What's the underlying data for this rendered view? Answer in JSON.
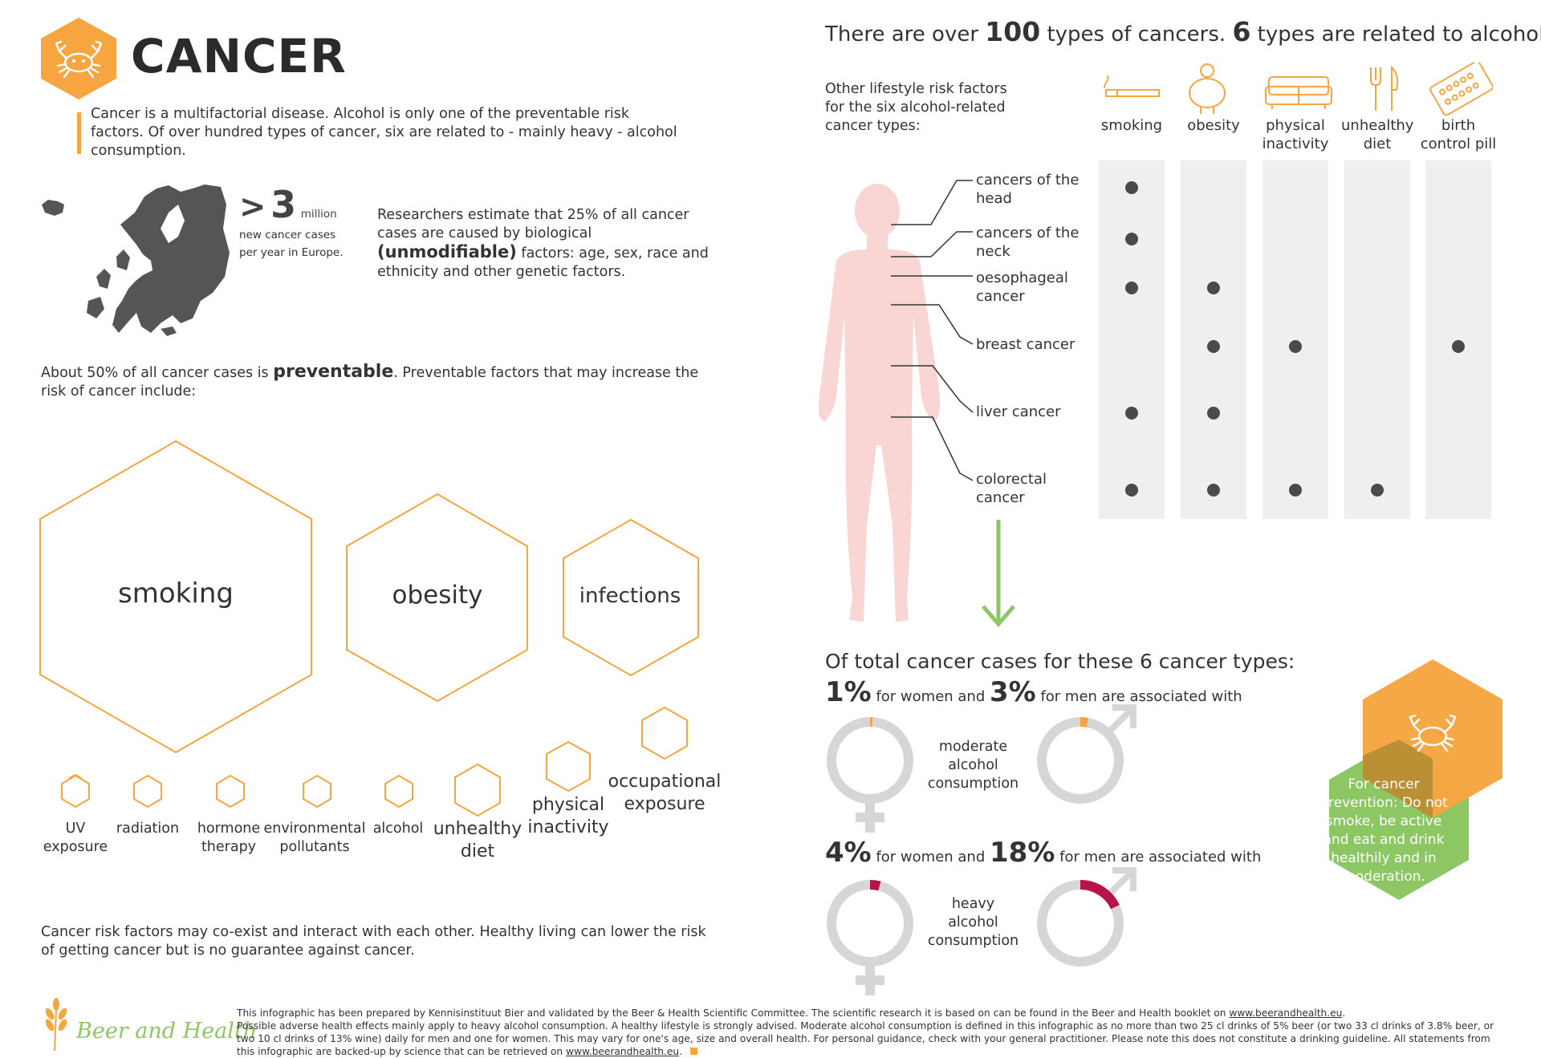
{
  "header": {
    "title": "CANCER",
    "intro": "Cancer is a multifactorial disease. Alcohol is only one of the preventable risk factors. Of over hundred types of cancer, six are related to - mainly heavy - alcohol consumption."
  },
  "europe": {
    "prefix": ">",
    "number": "3",
    "unit": "million",
    "line2": "new cancer cases",
    "line3": "per year in Europe."
  },
  "researchers": {
    "before": "Researchers estimate that 25% of all cancer cases are caused by biological ",
    "bold": "(unmodifiable)",
    "after": " factors: age, sex, race and ethnicity and other genetic factors."
  },
  "preventable": {
    "before": "About 50% of all cancer cases is ",
    "bold": "preventable",
    "after": ". Preventable factors that may increase the risk of cancer include:"
  },
  "big_hexes": [
    "smoking",
    "obesity",
    "infections"
  ],
  "small_factors": [
    "UV exposure",
    "radiation",
    "hormone therapy",
    "environmental pollutants",
    "alcohol",
    "unhealthy diet",
    "physical inactivity",
    "occupational exposure"
  ],
  "coexist": "Cancer risk factors may co-exist and interact with each other. Healthy living can lower the risk of getting cancer but is no guarantee against cancer.",
  "types_headline": {
    "a": "There are over ",
    "n1": "100",
    "b": " types of cancers. ",
    "n2": "6",
    "c": " types are related to alcohol."
  },
  "lifestyle_intro": "Other lifestyle risk factors for the six alcohol-related cancer types:",
  "risk_factors": [
    {
      "label": "smoking",
      "icon": "cigarette-icon"
    },
    {
      "label": "obesity",
      "icon": "obese-person-icon"
    },
    {
      "label": "physical inactivity",
      "icon": "sofa-icon"
    },
    {
      "label": "unhealthy diet",
      "icon": "fork-knife-icon"
    },
    {
      "label": "birth control pill",
      "icon": "pill-pack-icon"
    }
  ],
  "cancer_types": [
    {
      "label": "cancers of the head",
      "factors": [
        true,
        false,
        false,
        false,
        false
      ]
    },
    {
      "label": "cancers of the neck",
      "factors": [
        true,
        false,
        false,
        false,
        false
      ]
    },
    {
      "label": "oesophageal cancer",
      "factors": [
        true,
        true,
        false,
        false,
        false
      ]
    },
    {
      "label": "breast cancer",
      "factors": [
        false,
        true,
        true,
        false,
        true
      ]
    },
    {
      "label": "liver cancer",
      "factors": [
        true,
        true,
        false,
        false,
        false
      ]
    },
    {
      "label": "colorectal cancer",
      "factors": [
        true,
        true,
        true,
        true,
        false
      ]
    }
  ],
  "totals_headline": "Of total cancer cases for these 6 cancer types:",
  "moderate": {
    "women": "1%",
    "men": "3%",
    "for_women": " for women and ",
    "for_men": " for men are associated with",
    "label": "moderate alcohol consumption",
    "women_fraction": 0.01,
    "men_fraction": 0.03
  },
  "heavy": {
    "women": "4%",
    "men": "18%",
    "for_women": " for women and ",
    "for_men": " for men are associated with",
    "label": "heavy alcohol consumption",
    "women_fraction": 0.04,
    "men_fraction": 0.18
  },
  "prevention": "For cancer prevention: Do not smoke, be active and eat and drink healthily and in moderation.",
  "footer": {
    "brand": "Beer and Health",
    "p1": "This infographic has been prepared by Kennisinstituut Bier and validated by the Beer & Health Scientific Committee. The scientific research it is based on can be found in the Beer and Health booklet on ",
    "link1": "www.beerandhealth.eu",
    "p1end": ".",
    "p2": "Possible adverse health effects mainly apply to heavy alcohol consumption. A healthy lifestyle is strongly advised. Moderate alcohol consumption is defined in this infographic as no more than two 25 cl drinks of 5% beer (or two 33 cl drinks of 3.8% beer, or two 10 cl drinks of 13% wine) daily for men and one for women. This may vary for one's age, size and overall health. For personal guidance, check with your general practitioner. Please note this does not constitute a drinking guideline. All statements from this infographic are backed-up by science that can be retrieved on ",
    "link2": "www.beerandhealth.eu",
    "p2end": "."
  },
  "colors": {
    "orange": "#f7a540",
    "green": "#8cc763",
    "crimson": "#b5154b",
    "ring_gray": "#d6d6d6",
    "body_pink": "#f9d6d4",
    "dark": "#4a4a4a"
  }
}
